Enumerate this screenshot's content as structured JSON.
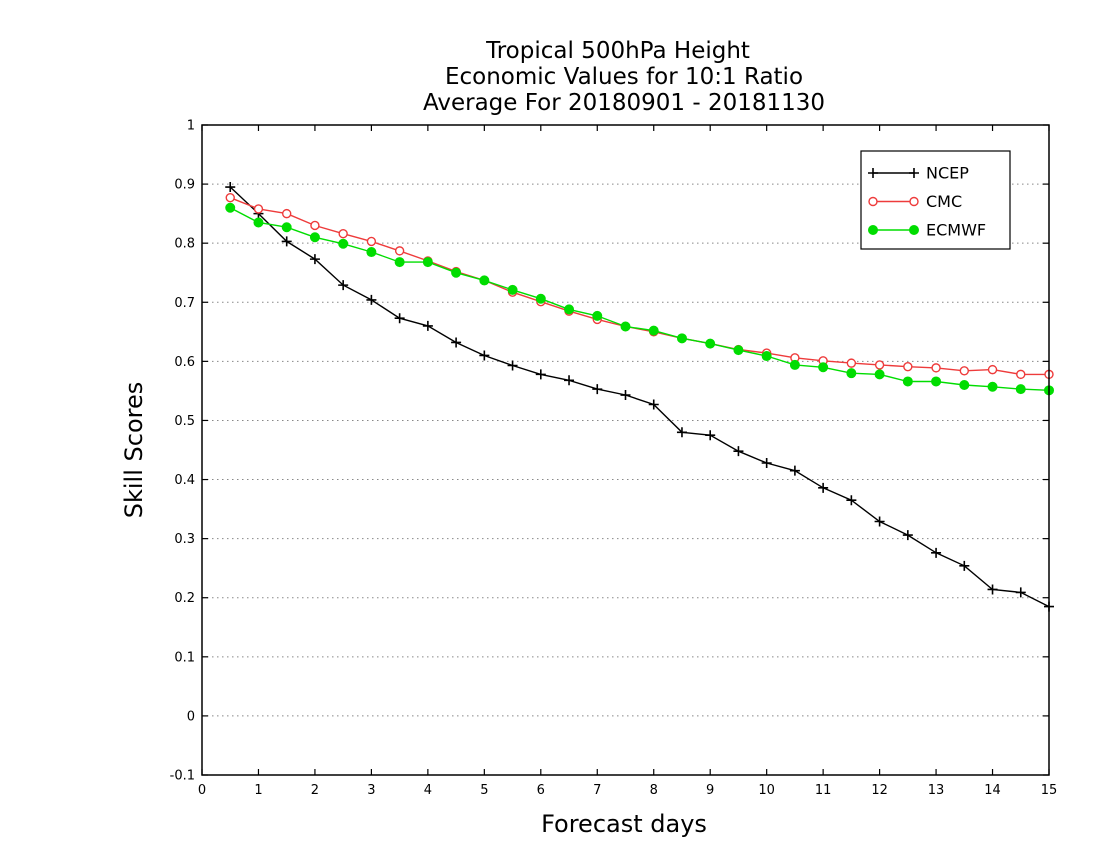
{
  "chart_data": {
    "type": "line",
    "title": [
      "Tropical 500hPa Height",
      "Economic Values for 10:1 Ratio",
      "Average For 20180901 - 20181130"
    ],
    "xlabel": "Forecast days",
    "ylabel": "Skill Scores",
    "xlim": [
      0,
      15
    ],
    "ylim": [
      -0.1,
      1
    ],
    "xticks": [
      "0",
      "1",
      "2",
      "3",
      "4",
      "5",
      "6",
      "7",
      "8",
      "9",
      "10",
      "11",
      "12",
      "13",
      "14",
      "15"
    ],
    "yticks": [
      "-0.1",
      "0",
      "0.1",
      "0.2",
      "0.3",
      "0.4",
      "0.5",
      "0.6",
      "0.7",
      "0.8",
      "0.9",
      "1"
    ],
    "grid": true,
    "legend_position": "top-right",
    "x": [
      0.5,
      1,
      1.5,
      2,
      2.5,
      3,
      3.5,
      4,
      4.5,
      5,
      5.5,
      6,
      6.5,
      7,
      7.5,
      8,
      8.5,
      9,
      9.5,
      10,
      10.5,
      11,
      11.5,
      12,
      12.5,
      13,
      13.5,
      14,
      14.5,
      15
    ],
    "series": [
      {
        "name": "NCEP",
        "color": "#000000",
        "marker": "plus",
        "values": [
          0.895,
          0.85,
          0.803,
          0.773,
          0.729,
          0.704,
          0.673,
          0.66,
          0.632,
          0.61,
          0.593,
          0.578,
          0.568,
          0.553,
          0.543,
          0.527,
          0.48,
          0.475,
          0.448,
          0.428,
          0.415,
          0.386,
          0.365,
          0.329,
          0.306,
          0.276,
          0.254,
          0.214,
          0.209,
          0.185
        ]
      },
      {
        "name": "CMC",
        "color": "#ee3b3b",
        "marker": "open-circle",
        "values": [
          0.877,
          0.858,
          0.85,
          0.83,
          0.816,
          0.803,
          0.787,
          0.77,
          0.752,
          0.737,
          0.717,
          0.701,
          0.685,
          0.671,
          0.659,
          0.65,
          0.639,
          0.63,
          0.62,
          0.614,
          0.606,
          0.601,
          0.597,
          0.594,
          0.591,
          0.589,
          0.584,
          0.586,
          0.578,
          0.578
        ]
      },
      {
        "name": "ECMWF",
        "color": "#00dd00",
        "marker": "filled-circle",
        "values": [
          0.86,
          0.835,
          0.827,
          0.81,
          0.799,
          0.785,
          0.768,
          0.768,
          0.75,
          0.737,
          0.721,
          0.706,
          0.688,
          0.677,
          0.659,
          0.652,
          0.639,
          0.63,
          0.619,
          0.609,
          0.594,
          0.59,
          0.58,
          0.578,
          0.566,
          0.566,
          0.56,
          0.557,
          0.553,
          0.551
        ]
      }
    ]
  }
}
